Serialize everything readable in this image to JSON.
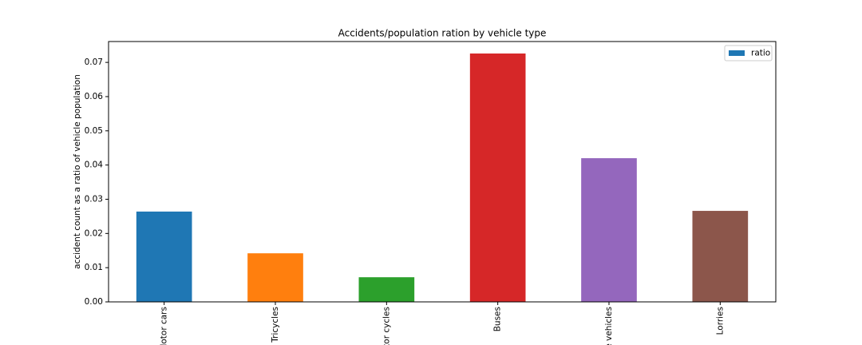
{
  "chart_data": {
    "type": "bar",
    "title": "Accidents/population ration by vehicle type",
    "y_label": "accident count as a ratio of vehicle population",
    "categories": [
      "lotor cars",
      "Tricycles",
      "tor cycles",
      "Buses",
      "e vehicles",
      "Lorries"
    ],
    "series": [
      {
        "name": "ratio",
        "color": "#1f77b4",
        "values": [
          0.0264,
          0.0142,
          0.0072,
          0.0726,
          0.042,
          0.0266
        ]
      }
    ],
    "colors": [
      "#1f77b4",
      "#ff7f0e",
      "#2ca02c",
      "#d62728",
      "#9467bd",
      "#8c564b"
    ],
    "ylim": [
      0,
      0.0761
    ],
    "yticks": [
      {
        "value": 0,
        "label": "0.00"
      },
      {
        "value": 0.01,
        "label": "0.01"
      },
      {
        "value": 0.02,
        "label": "0.02"
      },
      {
        "value": 0.03,
        "label": "0.03"
      },
      {
        "value": 0.04,
        "label": "0.04"
      },
      {
        "value": 0.05,
        "label": "0.05"
      },
      {
        "value": 0.06,
        "label": "0.06"
      },
      {
        "value": 0.07,
        "label": "0.07"
      }
    ],
    "legend": "upper right"
  }
}
